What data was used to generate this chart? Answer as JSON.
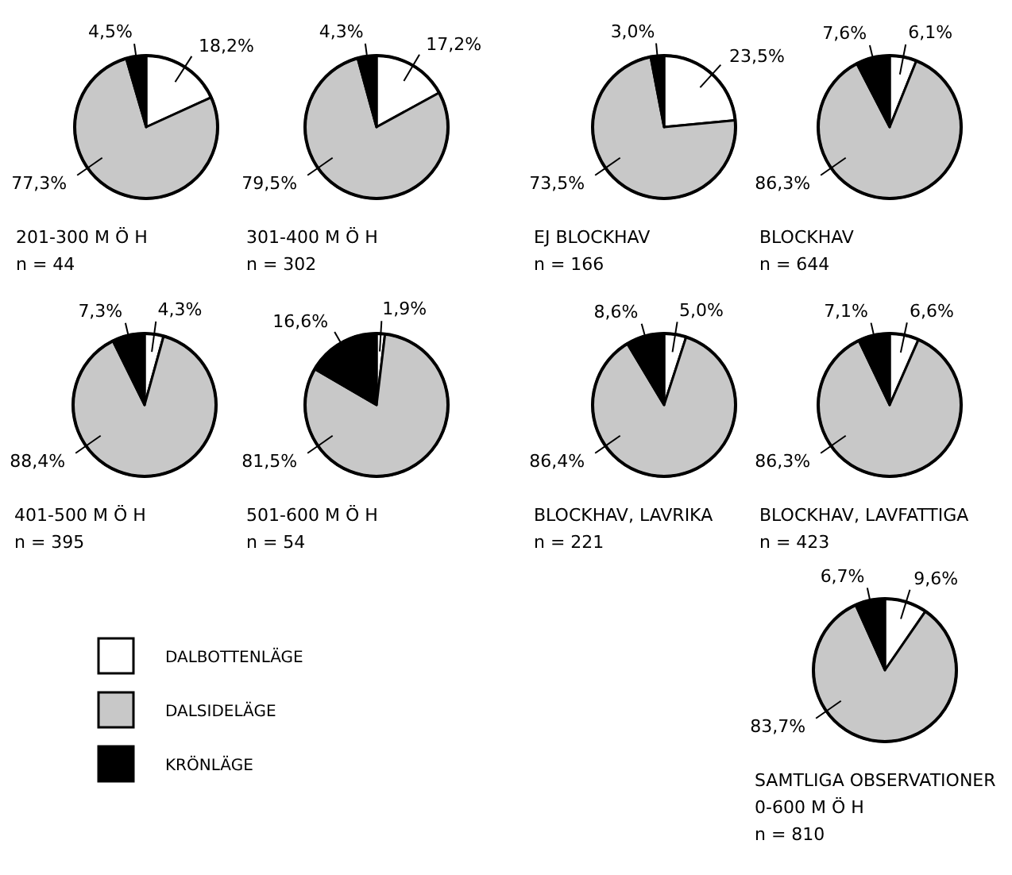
{
  "chart_data": [
    {
      "type": "pie",
      "title": "201-300 M Ö H",
      "annotations": [
        "n = 44"
      ],
      "categories": [
        null,
        null,
        null
      ],
      "values": [
        18.2,
        77.3,
        4.5
      ],
      "colors": [
        "#ffffff",
        "#c8c8c8",
        "#000000"
      ],
      "value_labels": [
        "18,2%",
        "77,3%",
        "4,5%"
      ],
      "legend": false
    },
    {
      "type": "pie",
      "title": "301-400 M Ö H",
      "annotations": [
        "n = 302"
      ],
      "categories": [
        null,
        null,
        null
      ],
      "values": [
        17.2,
        79.5,
        4.3
      ],
      "colors": [
        "#ffffff",
        "#c8c8c8",
        "#000000"
      ],
      "value_labels": [
        "17,2%",
        "79,5%",
        "4,3%"
      ],
      "legend": false
    },
    {
      "type": "pie",
      "title": "EJ BLOCKHAV",
      "annotations": [
        "n = 166"
      ],
      "categories": [
        null,
        null,
        null
      ],
      "values": [
        23.5,
        73.5,
        3.0
      ],
      "colors": [
        "#ffffff",
        "#c8c8c8",
        "#000000"
      ],
      "value_labels": [
        "23,5%",
        "73,5%",
        "3,0%"
      ],
      "legend": false
    },
    {
      "type": "pie",
      "title": "BLOCKHAV",
      "annotations": [
        "n = 644"
      ],
      "categories": [
        null,
        null,
        null
      ],
      "values": [
        6.1,
        86.3,
        7.6
      ],
      "colors": [
        "#ffffff",
        "#c8c8c8",
        "#000000"
      ],
      "value_labels": [
        "6,1%",
        "86,3%",
        "7,6%"
      ],
      "legend": false
    },
    {
      "type": "pie",
      "title": "401-500 M Ö H",
      "annotations": [
        "n = 395"
      ],
      "categories": [
        null,
        null,
        null
      ],
      "values": [
        4.3,
        88.4,
        7.3
      ],
      "colors": [
        "#ffffff",
        "#c8c8c8",
        "#000000"
      ],
      "value_labels": [
        "4,3%",
        "88,4%",
        "7,3%"
      ],
      "legend": false
    },
    {
      "type": "pie",
      "title": "501-600 M Ö H",
      "annotations": [
        "n = 54"
      ],
      "categories": [
        null,
        null,
        null
      ],
      "values": [
        1.9,
        81.5,
        16.6
      ],
      "colors": [
        "#ffffff",
        "#c8c8c8",
        "#000000"
      ],
      "value_labels": [
        "1,9%",
        "81,5%",
        "16,6%"
      ],
      "legend": false
    },
    {
      "type": "pie",
      "title": "BLOCKHAV, LAVRIKA",
      "annotations": [
        "n = 221"
      ],
      "categories": [
        null,
        null,
        null
      ],
      "values": [
        5.0,
        86.4,
        8.6
      ],
      "colors": [
        "#ffffff",
        "#c8c8c8",
        "#000000"
      ],
      "value_labels": [
        "5,0%",
        "86,4%",
        "8,6%"
      ],
      "legend": false
    },
    {
      "type": "pie",
      "title": "BLOCKHAV, LAVFATTIGA",
      "annotations": [
        "n = 423"
      ],
      "categories": [
        null,
        null,
        null
      ],
      "values": [
        6.6,
        86.3,
        7.1
      ],
      "colors": [
        "#ffffff",
        "#c8c8c8",
        "#000000"
      ],
      "value_labels": [
        "6,6%",
        "86,3%",
        "7,1%"
      ],
      "legend": false
    },
    {
      "type": "pie",
      "title": "SAMTLIGA OBSERVATIONER",
      "subtitle": "0-600 M Ö H",
      "annotations": [
        "n = 810"
      ],
      "categories": [
        "DALBOTTENLÄGE",
        "DALSIDELÄGE",
        "KRÖNLÄGE"
      ],
      "values": [
        9.6,
        83.7,
        6.7
      ],
      "colors": [
        "#ffffff",
        "#c8c8c8",
        "#000000"
      ],
      "value_labels": [
        "9,6%",
        "83,7%",
        "6,7%"
      ],
      "legend": "left"
    }
  ]
}
